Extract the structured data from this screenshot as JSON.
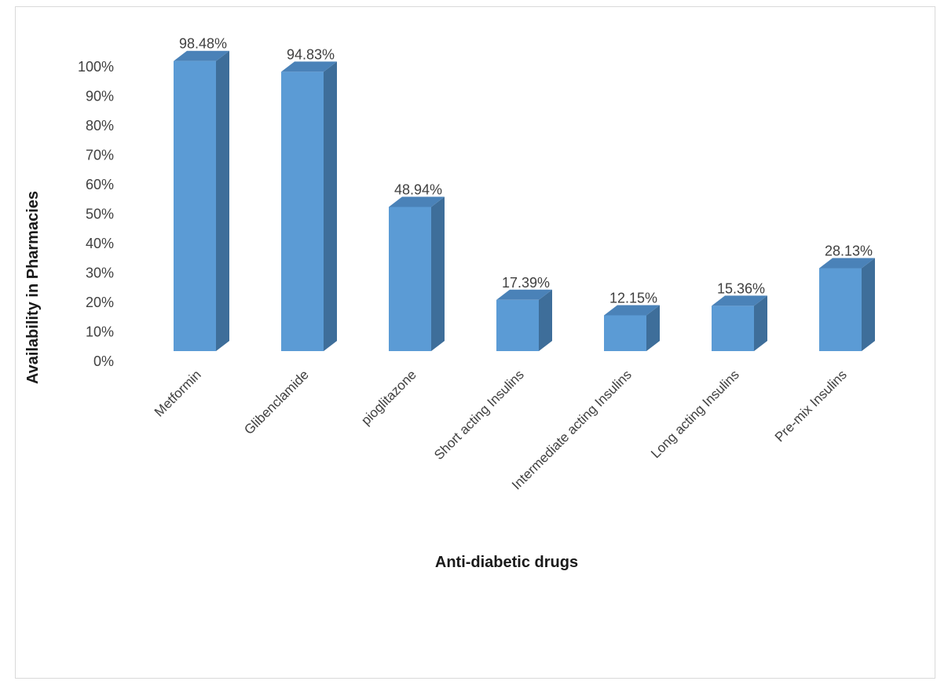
{
  "chart_data": {
    "type": "bar",
    "style": "3d-column",
    "title": "",
    "xlabel": "Anti-diabetic drugs",
    "ylabel": "Availability in Pharmacies",
    "ylim": [
      0,
      100
    ],
    "yticks": [
      "0%",
      "10%",
      "20%",
      "30%",
      "40%",
      "50%",
      "60%",
      "70%",
      "80%",
      "90%",
      "100%"
    ],
    "grid": false,
    "legend": "none",
    "categories": [
      "Metformin",
      "Glibenclamide",
      "pioglitazone",
      "Short acting Insulins",
      "Intermediate acting Insulins",
      "Long acting Insulins",
      "Pre-mix Insulins"
    ],
    "values": [
      98.48,
      94.83,
      48.94,
      17.39,
      12.15,
      15.36,
      28.13
    ],
    "data_labels": [
      "98.48%",
      "94.83%",
      "48.94%",
      "17.39%",
      "12.15%",
      "15.36%",
      "28.13%"
    ],
    "colors": {
      "bar_front": "#5b9bd5",
      "bar_side": "#3e6e9a",
      "bar_top": "#4a82b8"
    }
  }
}
